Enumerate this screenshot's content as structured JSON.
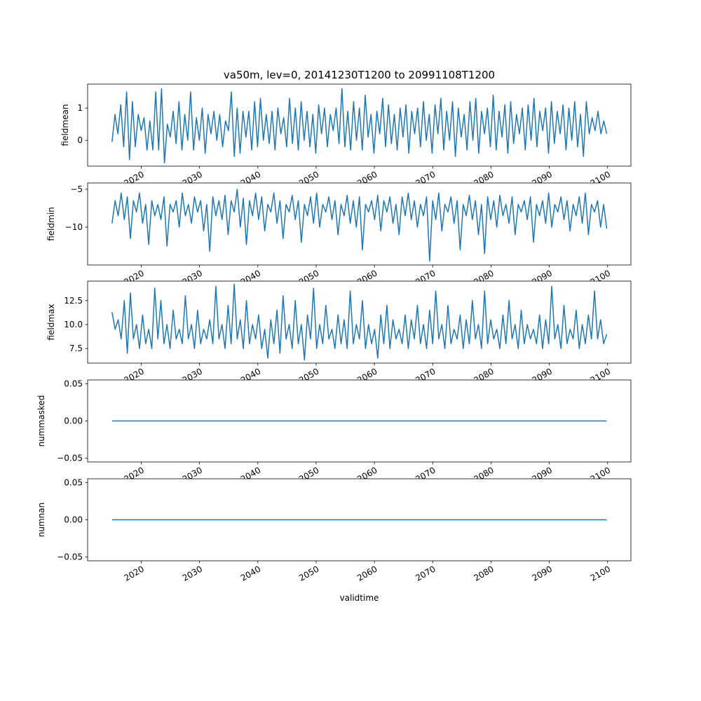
{
  "chart_data": {
    "type": "line",
    "title": "va50m, lev=0, 20141230T1200 to 20991108T1200",
    "xlabel": "validtime",
    "xlim": [
      2010.8,
      2104.0
    ],
    "x_start": 2014.99,
    "x_end": 2099.85,
    "xticks": [
      2020,
      2030,
      2040,
      2050,
      2060,
      2070,
      2080,
      2090,
      2100
    ],
    "xtick_labels": [
      "2020",
      "2030",
      "2040",
      "2050",
      "2060",
      "2070",
      "2080",
      "2090",
      "2100"
    ],
    "line_color": "#1f77b4",
    "grid": false,
    "subplots": [
      {
        "ylabel": "fieldmean",
        "ylim": [
          -0.8,
          1.74
        ],
        "yticks": [
          0,
          1
        ],
        "ytick_labels": [
          "0",
          "1"
        ],
        "values": [
          -0.05,
          0.8,
          0.2,
          1.1,
          -0.2,
          1.5,
          -0.6,
          1.2,
          -0.2,
          0.8,
          0.3,
          0.7,
          -0.3,
          0.6,
          -0.3,
          1.5,
          -0.3,
          1.6,
          -0.7,
          0.5,
          0.1,
          0.9,
          -0.1,
          1.2,
          -0.3,
          0.8,
          0.0,
          1.5,
          -0.3,
          0.7,
          0.0,
          1.0,
          -0.4,
          0.8,
          0.2,
          0.9,
          0.0,
          0.8,
          -0.2,
          0.6,
          0.3,
          1.5,
          -0.5,
          1.0,
          -0.4,
          0.9,
          0.1,
          0.9,
          -0.3,
          1.2,
          -0.2,
          1.3,
          0.0,
          0.8,
          -0.1,
          0.9,
          -0.3,
          1.0,
          0.2,
          0.7,
          -0.2,
          1.3,
          -0.1,
          1.0,
          -0.3,
          1.2,
          0.0,
          0.9,
          -0.2,
          0.8,
          -0.4,
          1.1,
          0.2,
          1.0,
          -0.2,
          0.8,
          0.3,
          1.0,
          -0.1,
          1.6,
          -0.2,
          0.9,
          -0.3,
          1.2,
          0.0,
          1.0,
          -0.3,
          1.4,
          0.1,
          0.8,
          -0.4,
          0.9,
          0.2,
          1.3,
          -0.2,
          1.1,
          -0.1,
          0.8,
          -0.3,
          1.0,
          0.1,
          1.1,
          -0.4,
          0.9,
          0.2,
          1.0,
          -0.2,
          1.2,
          0.0,
          0.8,
          -0.4,
          1.1,
          0.2,
          1.3,
          -0.3,
          0.9,
          0.0,
          1.2,
          -0.5,
          1.0,
          0.1,
          0.8,
          -0.3,
          1.2,
          0.0,
          1.3,
          -0.4,
          0.9,
          0.2,
          1.0,
          -0.2,
          1.4,
          -0.3,
          0.9,
          0.1,
          1.1,
          -0.4,
          1.2,
          -0.1,
          0.8,
          0.2,
          1.0,
          -0.3,
          1.1,
          0.0,
          1.3,
          -0.2,
          0.9,
          0.3,
          1.0,
          -0.4,
          1.2,
          -0.1,
          0.9,
          0.2,
          1.1,
          -0.3,
          1.0,
          0.0,
          1.2,
          -0.2,
          0.8,
          -0.5,
          1.2,
          0.2,
          0.7,
          0.3,
          0.9,
          0.2,
          0.6,
          0.2
        ]
      },
      {
        "ylabel": "fieldmin",
        "ylim": [
          -15.0,
          -4.17
        ],
        "yticks": [
          -10,
          -5
        ],
        "ytick_labels": [
          "−10",
          "−5"
        ],
        "values": [
          -9.5,
          -6.5,
          -8.5,
          -5.5,
          -9.0,
          -6.0,
          -11.5,
          -6.5,
          -8.0,
          -5.5,
          -9.5,
          -7.0,
          -12.3,
          -6.5,
          -8.5,
          -7.0,
          -9.0,
          -6.0,
          -12.5,
          -7.0,
          -8.0,
          -6.5,
          -10.0,
          -5.5,
          -8.5,
          -7.0,
          -9.5,
          -6.0,
          -8.0,
          -6.5,
          -10.5,
          -7.0,
          -13.2,
          -6.0,
          -8.5,
          -6.5,
          -9.0,
          -5.8,
          -11.0,
          -6.5,
          -8.0,
          -5.0,
          -10.0,
          -6.2,
          -12.3,
          -6.5,
          -8.5,
          -5.5,
          -9.0,
          -6.0,
          -10.5,
          -7.0,
          -8.0,
          -5.5,
          -9.5,
          -6.5,
          -11.5,
          -7.0,
          -8.0,
          -5.8,
          -9.0,
          -6.5,
          -12.0,
          -7.0,
          -8.5,
          -6.0,
          -9.5,
          -5.5,
          -10.0,
          -7.0,
          -8.0,
          -6.0,
          -9.0,
          -6.5,
          -11.0,
          -7.0,
          -8.5,
          -5.8,
          -9.5,
          -6.5,
          -10.0,
          -6.0,
          -13.0,
          -7.0,
          -8.0,
          -6.5,
          -9.0,
          -5.8,
          -10.5,
          -6.5,
          -8.0,
          -6.0,
          -9.5,
          -7.0,
          -11.0,
          -6.0,
          -8.5,
          -5.5,
          -9.0,
          -6.5,
          -10.0,
          -7.0,
          -8.5,
          -6.0,
          -14.5,
          -6.5,
          -9.0,
          -5.5,
          -10.5,
          -7.0,
          -8.0,
          -6.0,
          -9.5,
          -6.5,
          -13.0,
          -7.0,
          -8.5,
          -5.8,
          -9.0,
          -6.5,
          -11.0,
          -7.0,
          -13.5,
          -6.0,
          -9.0,
          -6.5,
          -10.0,
          -5.8,
          -8.5,
          -7.0,
          -9.5,
          -6.0,
          -11.0,
          -7.0,
          -8.0,
          -6.5,
          -9.0,
          -6.0,
          -12.0,
          -7.0,
          -8.5,
          -6.5,
          -9.5,
          -5.5,
          -10.0,
          -7.0,
          -8.0,
          -6.0,
          -9.0,
          -6.5,
          -10.5,
          -7.0,
          -8.5,
          -6.0,
          -9.5,
          -5.5,
          -11.0,
          -7.0,
          -8.0,
          -6.5,
          -10.0,
          -7.0,
          -10.2
        ]
      },
      {
        "ylabel": "fieldmax",
        "ylim": [
          5.98,
          14.53
        ],
        "yticks": [
          7.5,
          10.0,
          12.5
        ],
        "ytick_labels": [
          "7.5",
          "10.0",
          "12.5"
        ],
        "values": [
          11.3,
          9.5,
          10.5,
          8.5,
          12.5,
          7.0,
          13.3,
          8.5,
          10.0,
          7.5,
          11.0,
          8.0,
          9.5,
          7.5,
          13.8,
          8.5,
          12.5,
          8.0,
          10.0,
          7.5,
          11.5,
          8.5,
          9.5,
          8.0,
          13.0,
          8.5,
          10.0,
          7.5,
          11.5,
          8.0,
          9.5,
          8.5,
          10.5,
          8.0,
          14.0,
          8.5,
          10.0,
          7.5,
          12.0,
          8.0,
          14.2,
          8.5,
          10.5,
          7.5,
          12.5,
          8.0,
          10.0,
          8.5,
          11.0,
          7.5,
          9.5,
          6.5,
          10.5,
          8.0,
          11.5,
          7.0,
          13.0,
          8.5,
          10.0,
          7.5,
          12.5,
          8.0,
          10.0,
          6.3,
          11.0,
          8.5,
          13.8,
          7.5,
          10.0,
          8.0,
          12.0,
          8.5,
          9.5,
          7.5,
          11.0,
          8.0,
          10.5,
          7.5,
          13.5,
          8.0,
          10.0,
          8.5,
          12.5,
          7.5,
          10.0,
          8.0,
          9.5,
          6.5,
          11.0,
          8.0,
          12.0,
          7.5,
          10.5,
          8.5,
          9.5,
          8.0,
          11.0,
          7.5,
          10.5,
          8.5,
          12.0,
          8.0,
          10.0,
          7.5,
          11.5,
          8.0,
          13.5,
          8.5,
          10.0,
          7.5,
          12.0,
          8.0,
          9.5,
          8.5,
          11.0,
          7.5,
          10.5,
          8.0,
          12.5,
          8.5,
          10.0,
          7.5,
          13.5,
          8.0,
          10.5,
          8.5,
          9.5,
          7.5,
          11.0,
          8.0,
          12.5,
          8.5,
          10.0,
          7.5,
          11.5,
          8.0,
          10.0,
          8.5,
          9.5,
          8.0,
          11.0,
          7.5,
          10.5,
          8.0,
          14.0,
          8.5,
          10.0,
          7.5,
          12.0,
          8.0,
          9.5,
          8.5,
          11.5,
          7.5,
          10.0,
          8.0,
          11.0,
          8.5,
          13.5,
          8.5,
          10.5,
          8.0,
          9.0
        ]
      },
      {
        "ylabel": "nummasked",
        "ylim": [
          -0.055,
          0.055
        ],
        "yticks": [
          -0.05,
          0.0,
          0.05
        ],
        "ytick_labels": [
          "−0.05",
          "0.00",
          "0.05"
        ],
        "values": [
          0,
          0
        ]
      },
      {
        "ylabel": "numnan",
        "ylim": [
          -0.055,
          0.055
        ],
        "yticks": [
          -0.05,
          0.0,
          0.05
        ],
        "ytick_labels": [
          "−0.05",
          "0.00",
          "0.05"
        ],
        "values": [
          0,
          0
        ]
      }
    ]
  }
}
